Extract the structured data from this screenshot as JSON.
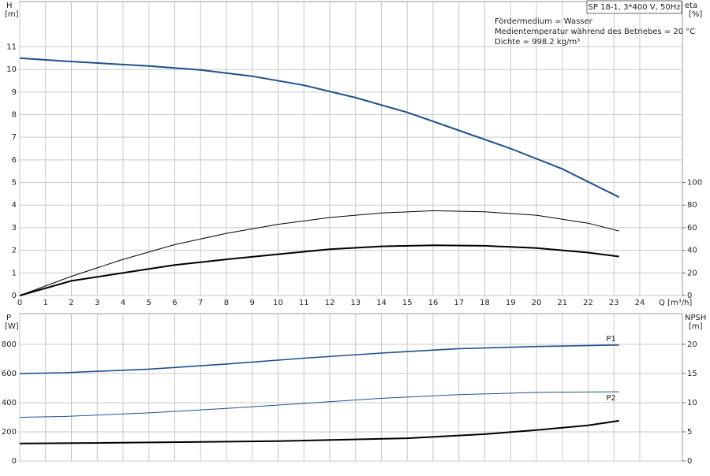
{
  "chart_data": [
    {
      "type": "line",
      "ylabel": "H",
      "ylabel_unit": "[m]",
      "y2label": "eta",
      "y2label_unit": "[%]",
      "xlabel": "Q [m³/h]",
      "title": "SP 18-1, 3*400 V, 50Hz",
      "annotations": [
        "Fördermedium = Wasser",
        "Medientemperatur während des Betriebes = 20 °C",
        "Dichte = 998.2 kg/m³"
      ],
      "xlim": [
        0,
        25.65
      ],
      "xticks": [
        0,
        1,
        2,
        3,
        4,
        5,
        6,
        7,
        8,
        9,
        10,
        11,
        12,
        13,
        14,
        15,
        16,
        17,
        18,
        19,
        20,
        21,
        22,
        23,
        24
      ],
      "ylim": [
        0,
        13
      ],
      "yticks": [
        0,
        1,
        2,
        3,
        4,
        5,
        6,
        7,
        8,
        9,
        10,
        11
      ],
      "y2lim": [
        0,
        260
      ],
      "y2ticks": [
        0,
        20,
        40,
        60,
        80,
        100
      ],
      "grid": true,
      "series": [
        {
          "color": "#1f4f8c",
          "width": 2,
          "x": [
            0,
            1.7,
            5,
            7,
            9,
            11,
            13,
            15,
            17,
            19,
            21,
            23.2
          ],
          "values": [
            10.5,
            10.37,
            10.15,
            9.98,
            9.7,
            9.3,
            8.75,
            8.1,
            7.3,
            6.5,
            5.6,
            4.35
          ]
        },
        {
          "color": "#000000",
          "width": 1,
          "axis": "y2",
          "x": [
            0,
            2,
            4,
            6,
            8,
            10,
            12,
            14,
            16,
            18,
            20,
            22,
            23.2
          ],
          "values": [
            0,
            17,
            32,
            45,
            55,
            63,
            69,
            73,
            75,
            74,
            71,
            64,
            57
          ]
        },
        {
          "color": "#000000",
          "width": 2,
          "axis": "y2",
          "x": [
            0,
            2,
            4,
            6,
            8,
            10,
            12,
            14,
            16,
            18,
            20,
            22,
            23.2
          ],
          "values": [
            0,
            13,
            20,
            27,
            32,
            36.5,
            41,
            43.5,
            44.5,
            44,
            42,
            38,
            34.5
          ]
        }
      ]
    },
    {
      "type": "line",
      "ylabel": "P",
      "ylabel_unit": "[W]",
      "y2label": "NPSH",
      "y2label_unit": "[m]",
      "xlim": [
        0,
        25.65
      ],
      "ylim": [
        0,
        1010
      ],
      "yticks": [
        0,
        200,
        400,
        600,
        800
      ],
      "y2lim": [
        0,
        25.25
      ],
      "y2ticks": [
        0,
        5,
        10,
        15,
        20
      ],
      "grid": true,
      "series": [
        {
          "name": "P1",
          "color": "#1f4f8c",
          "width": 1.6,
          "x": [
            0,
            1.7,
            5,
            8,
            11,
            14,
            17,
            20,
            23.2
          ],
          "values": [
            600,
            605,
            630,
            665,
            705,
            740,
            770,
            785,
            795
          ]
        },
        {
          "name": "P2",
          "color": "#1f4f8c",
          "width": 1,
          "x": [
            0,
            1.7,
            5,
            8,
            11,
            14,
            17,
            20,
            23.2
          ],
          "values": [
            300,
            305,
            330,
            360,
            395,
            430,
            455,
            470,
            475
          ]
        },
        {
          "color": "#000000",
          "width": 2,
          "axis": "y2",
          "x": [
            0,
            1.7,
            10,
            15,
            18,
            20,
            22,
            23.2
          ],
          "values": [
            3.0,
            3.05,
            3.4,
            3.9,
            4.6,
            5.3,
            6.1,
            6.9
          ]
        }
      ]
    }
  ]
}
